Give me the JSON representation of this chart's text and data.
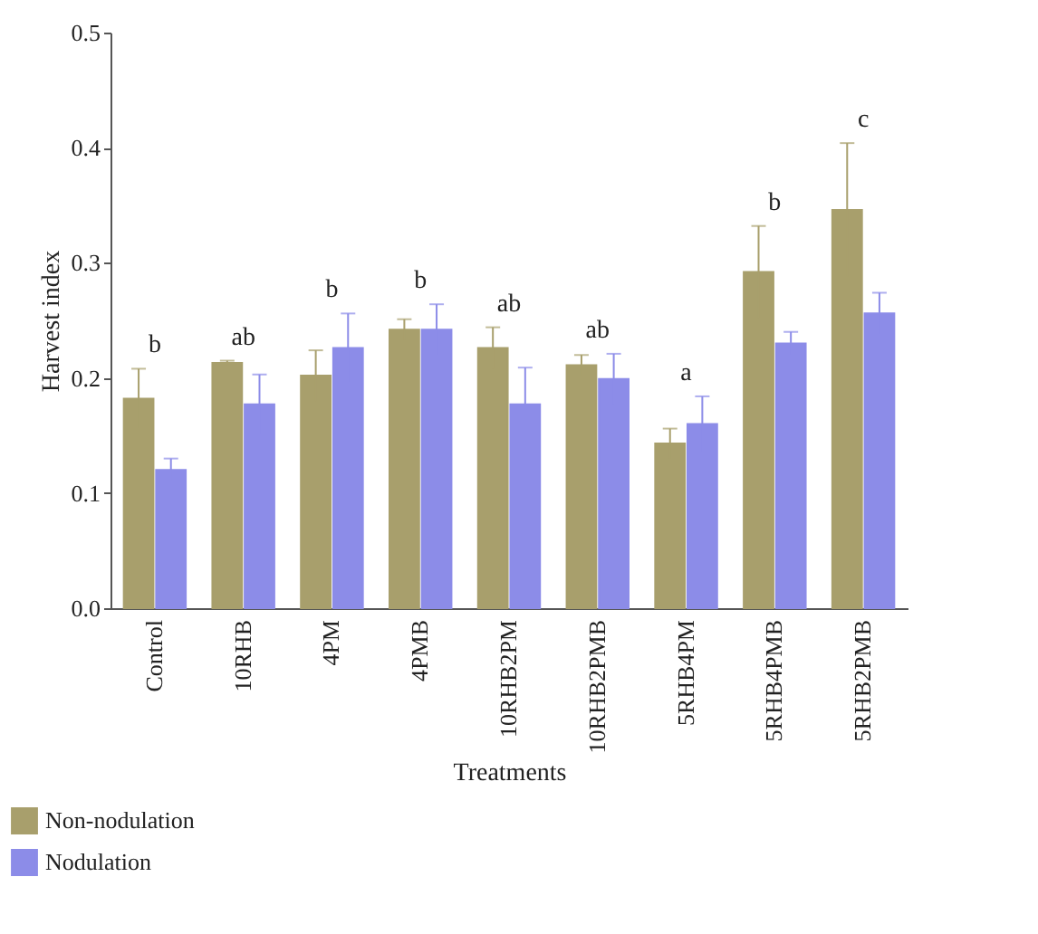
{
  "chart_data": {
    "type": "bar",
    "xlabel": "Treatments",
    "ylabel": "Harvest index",
    "categories": [
      "Control",
      "10RHB",
      "4PM",
      "4PMB",
      "10RHB2PM",
      "10RHB2PMB",
      "5RHB4PM",
      "5RHB4PMB",
      "5RHB2PMB"
    ],
    "series": [
      {
        "name": "Non-nodulation",
        "color": "#a89f6c",
        "values": [
          0.182,
          0.213,
          0.202,
          0.242,
          0.226,
          0.211,
          0.143,
          0.292,
          0.346
        ],
        "errors": [
          0.026,
          0.002,
          0.022,
          0.009,
          0.018,
          0.009,
          0.013,
          0.04,
          0.058
        ]
      },
      {
        "name": "Nodulation",
        "color": "#8c8ce8",
        "values": [
          0.12,
          0.177,
          0.226,
          0.242,
          0.177,
          0.199,
          0.16,
          0.23,
          0.256
        ],
        "errors": [
          0.01,
          0.026,
          0.03,
          0.022,
          0.032,
          0.022,
          0.024,
          0.01,
          0.018
        ]
      }
    ],
    "ylim": [
      0,
      0.5
    ],
    "yticks": [
      {
        "value": 0,
        "label": "0.0"
      },
      0.1,
      0.2,
      0.3,
      0.4,
      0.5
    ],
    "annotations": [
      "b",
      "ab",
      "b",
      "b",
      "ab",
      "ab",
      "a",
      "b",
      "c"
    ],
    "legend": "bottom left",
    "grid": false
  }
}
